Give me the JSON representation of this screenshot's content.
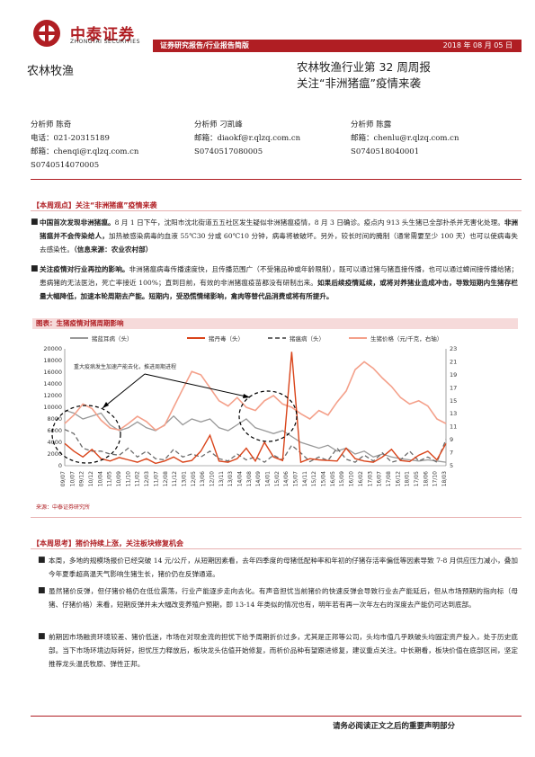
{
  "header": {
    "logo_cn": "中泰证券",
    "logo_en": "ZHONGTAI SECURITIES",
    "banner_left": "证券研究报告/行业报告简版",
    "banner_right": "2018 年 08 月 05 日",
    "sector": "农林牧渔",
    "title_line1": "农林牧渔行业第 32 周周报",
    "title_line2": "关注“非洲猪瘟”疫情来袭"
  },
  "analysts": [
    {
      "name": "分析师 陈奇",
      "contact1": "电话：021-20315189",
      "contact2": "邮箱：chenqi@r.qlzq.com.cn",
      "cert": "S0740514070005"
    },
    {
      "name": "分析师 刁凯峰",
      "contact1": "邮箱：diaokf@r.qlzq.com.cn",
      "contact2": "S0740517080005",
      "cert": ""
    },
    {
      "name": "分析师 陈露",
      "contact1": "邮箱：chenlu@r.qlzq.com.cn",
      "contact2": "S0740518040001",
      "cert": ""
    }
  ],
  "section1": {
    "head": "【本周观点】关注“非洲猪瘟”疫情来袭",
    "p1_bold": "中国首次发现非洲猪瘟。",
    "p1_a": "8 月 1 日下午，沈阳市沈北街道五五社区发生疑似非洲猪瘟疫情，8 月 3 日确诊。疫点内 913 头生猪已全部扑杀并无害化处理。",
    "p1_bold2": "非洲猪瘟并不会传染给人，",
    "p1_b": "加热被感染病毒的血液 55℃30 分或 60℃10 分钟，病毒将被破坏。另外，较长时间的腌制（通常需要至少 100 天）也可以使病毒失去感染性。",
    "p1_bold3": "（信息来源：农业农村部）",
    "p2_bold": "关注疫情对行业再拉的影响。",
    "p2_a": "非洲猪瘟病毒传播速度快，且传播范围广（不受猪品种或年龄限制），既可以通过猪与猪直接传播，也可以通过蜱间接传播给猪；患病猪的无法医治，死亡率接近 100%；直到目前，有效的非洲猪瘟疫苗都没有研制出来。",
    "p2_bold2": "如果后续疫情延续，或将对养猪业造成冲击，导致短期内生猪存栏量大幅降低，加速本轮周期去产能。短期内，受恐慌情绪影响，禽肉等替代品消费或将有所提升。"
  },
  "chart_title": "图表：生猪疫情对猪周期影响",
  "chart_data": {
    "type": "line",
    "legend": [
      "猪蓝耳病（头）",
      "猪丹毒（头）",
      "猪瘟病（头）",
      "生猪价格（元/千克，右轴）"
    ],
    "annotation": "重大疫病发生加速产能去化，推进周期进程",
    "y_left_ticks": [
      0,
      2000,
      4000,
      6000,
      8000,
      10000,
      12000,
      14000,
      16000,
      18000,
      20000
    ],
    "y_right_ticks": [
      5,
      7,
      9,
      11,
      13,
      15,
      17,
      19,
      21,
      23
    ],
    "x_ticks": [
      "09/07",
      "09/12",
      "10/04",
      "10/09",
      "11/02",
      "11/07",
      "11/12",
      "12/05",
      "12/10",
      "13/03",
      "13/08",
      "14/01",
      "14/06",
      "14/11",
      "15/04",
      "15/09",
      "16/02",
      "16/07",
      "16/12",
      "17/05",
      "17/10",
      "18/03"
    ],
    "x_ticks_lower": [
      "10/07",
      "10/12",
      "11/05",
      "11/10",
      "12/03",
      "12/08",
      "13/01",
      "13/06",
      "13/11",
      "14/04",
      "14/09",
      "15/02",
      "15/07",
      "15/12",
      "16/05",
      "16/10",
      "17/03",
      "17/08",
      "18/01",
      "18/06"
    ],
    "ylim_left": [
      0,
      20000
    ],
    "ylim_right": [
      5,
      23
    ],
    "colors": {
      "blue_ear": "#999999",
      "erysipelas": "#d9441a",
      "swine_fever": "#6b6b6b",
      "price": "#f4a08a"
    },
    "price": [
      11.5,
      12.8,
      14.5,
      13.8,
      12.0,
      10.8,
      10.5,
      11.5,
      12.6,
      11.8,
      10.5,
      11.2,
      14.0,
      16.8,
      19.5,
      19.0,
      17.0,
      15.0,
      14.2,
      15.5,
      14.0,
      13.5,
      15.0,
      15.8,
      14.5,
      14.0,
      13.0,
      12.2,
      13.5,
      12.8,
      14.8,
      16.5,
      19.8,
      21.0,
      20.0,
      18.5,
      17.2,
      15.5,
      14.5,
      15.0,
      14.2,
      12.2,
      11.5
    ],
    "erysipelas": [
      3800,
      2500,
      1500,
      2800,
      1200,
      800,
      1400,
      1000,
      600,
      1200,
      400,
      800,
      1500,
      600,
      900,
      2500,
      5200,
      800,
      600,
      1200,
      3000,
      800,
      4000,
      1500,
      900,
      19500,
      600,
      1200,
      1000,
      900,
      800,
      3000,
      1200,
      800,
      600,
      1500,
      2800,
      900,
      700,
      1800,
      2500,
      1000,
      3800
    ],
    "blue_ear": [
      9500,
      9000,
      8000,
      8500,
      9000,
      7000,
      6000,
      6500,
      7500,
      6500,
      6000,
      7000,
      8500,
      7000,
      8000,
      7500,
      8000,
      6500,
      6000,
      7000,
      8000,
      6500,
      6000,
      5500,
      6000,
      5000,
      4000,
      3500,
      3000,
      3500,
      2500,
      3000,
      2000,
      2500,
      1500,
      2000,
      1500,
      1200,
      1000,
      800,
      1000,
      800,
      600
    ],
    "swine_fever": [
      6200,
      5500,
      3000,
      2500,
      2500,
      2000,
      1800,
      3000,
      1500,
      2500,
      1200,
      1000,
      2800,
      1500,
      2000,
      1500,
      2500,
      1200,
      800,
      2000,
      1000,
      1500,
      600,
      1800,
      1000,
      3500,
      2200,
      700,
      1500,
      900,
      3000,
      1100,
      600,
      1800,
      800,
      2200,
      600,
      1000,
      2500,
      800,
      1500,
      600,
      4500
    ]
  },
  "chart_source": "来源：中泰证券研究所",
  "section2": {
    "head": "【本周思考】猪价持续上涨，关注板块修复机会",
    "p1": "本周，多地的规模场报价已经突破 14 元/公斤，从短期因素看，去年四季度的母猪低配种率和年初的仔猪存活率偏低等因素导致 7-8 月供应压力减小，叠加今年夏季超高温天气影响生猪生长，猪价仍在反弹通道。",
    "p2": "虽然猪价反弹，但仔猪价格仍在低位震荡，行业产能逐步走向去化。有声音担忧当前猪价的快速反弹会导致行业去产能延后，但从市场预期的指向标（母猪、仔猪价格）来看，短期反弹并未大幅改变养殖户预期，即 13-14 年类似的情况也有，明年若有再一次年左右的深度去产能仍可达到底部。",
    "p3": "前期因市场融资环境较差、猪价低迷，市场在对现金流的担忧下给予周期折价过多，尤其是正邦等公司，头均市值几乎跌破头均固定资产投入，处于历史底部。当下市场环境边际转好，担忧压力释放后，板块龙头估值开始修复，而析价品种有望跟进修复，建议重点关注。中长期看，板块价值在底部区间，坚定推荐龙头温氏牧原、弹性正邦。"
  },
  "footer": "请务必阅读正文之后的重要声明部分"
}
